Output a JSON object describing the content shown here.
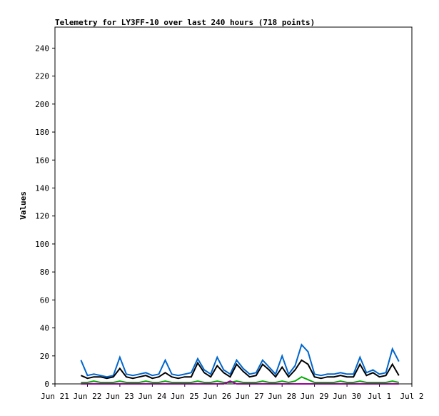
{
  "chart_data": {
    "type": "line",
    "title": "Telemetry for LY3FF-10 over last 240 hours (718 points)",
    "y_label": "Values",
    "x": [
      0.8,
      1.0,
      1.2,
      1.4,
      1.6,
      1.8,
      2.0,
      2.2,
      2.4,
      2.6,
      2.8,
      3.0,
      3.2,
      3.4,
      3.6,
      3.8,
      4.0,
      4.2,
      4.4,
      4.6,
      4.8,
      5.0,
      5.2,
      5.4,
      5.6,
      5.8,
      6.0,
      6.2,
      6.4,
      6.6,
      6.8,
      7.0,
      7.2,
      7.4,
      7.6,
      7.8,
      8.0,
      8.2,
      8.4,
      8.6,
      8.8,
      9.0,
      9.2,
      9.4,
      9.6,
      9.8,
      10.0,
      10.2,
      10.4,
      10.6
    ],
    "series": [
      {
        "color": "#0066cc",
        "values": [
          17,
          6,
          7,
          6,
          5,
          6,
          19,
          7,
          6,
          7,
          8,
          6,
          7,
          17,
          7,
          6,
          7,
          8,
          18,
          10,
          7,
          19,
          10,
          7,
          17,
          11,
          7,
          8,
          17,
          12,
          7,
          20,
          7,
          13,
          28,
          23,
          7,
          6,
          7,
          7,
          8,
          7,
          7,
          19,
          8,
          10,
          7,
          8,
          25,
          16
        ]
      },
      {
        "color": "#000000",
        "values": [
          6,
          4,
          5,
          5,
          4,
          5,
          11,
          5,
          4,
          5,
          6,
          4,
          5,
          8,
          5,
          4,
          5,
          5,
          15,
          8,
          5,
          13,
          8,
          5,
          14,
          9,
          5,
          6,
          14,
          10,
          5,
          12,
          5,
          10,
          17,
          14,
          5,
          4,
          5,
          5,
          6,
          5,
          5,
          14,
          6,
          8,
          5,
          6,
          14,
          6
        ]
      },
      {
        "color": "#00aa00",
        "values": [
          1,
          1,
          2,
          1,
          1,
          1,
          2,
          1,
          1,
          1,
          2,
          1,
          1,
          2,
          1,
          1,
          1,
          1,
          2,
          1,
          1,
          2,
          1,
          1,
          2,
          1,
          1,
          1,
          2,
          1,
          1,
          2,
          1,
          2,
          5,
          3,
          1,
          1,
          1,
          1,
          2,
          1,
          1,
          2,
          1,
          1,
          1,
          1,
          2,
          1
        ]
      },
      {
        "color": "#990099",
        "values": [
          0,
          0,
          0,
          0,
          0,
          0,
          0,
          0,
          0,
          0,
          0,
          0,
          0,
          0,
          0,
          0,
          0,
          0,
          0,
          0,
          0,
          0,
          0,
          2,
          0,
          0,
          0,
          0,
          0,
          0,
          0,
          0,
          0,
          0,
          0,
          0,
          0,
          0,
          0,
          0,
          0,
          0,
          0,
          0,
          0,
          0,
          0,
          0,
          0,
          0
        ]
      }
    ],
    "xlim": [
      0,
      11
    ],
    "xticks": [
      {
        "value": 0,
        "label": "Jun 21"
      },
      {
        "value": 1,
        "label": "Jun 22"
      },
      {
        "value": 2,
        "label": "Jun 23"
      },
      {
        "value": 3,
        "label": "Jun 24"
      },
      {
        "value": 4,
        "label": "Jun 25"
      },
      {
        "value": 5,
        "label": "Jun 26"
      },
      {
        "value": 6,
        "label": "Jun 27"
      },
      {
        "value": 7,
        "label": "Jun 28"
      },
      {
        "value": 8,
        "label": "Jun 29"
      },
      {
        "value": 9,
        "label": "Jun 30"
      },
      {
        "value": 10,
        "label": "Jul 1"
      },
      {
        "value": 11,
        "label": "Jul 2"
      }
    ],
    "ylim": [
      0,
      255
    ],
    "yticks": [
      0,
      20,
      40,
      60,
      80,
      100,
      120,
      140,
      160,
      180,
      200,
      220,
      240
    ]
  }
}
